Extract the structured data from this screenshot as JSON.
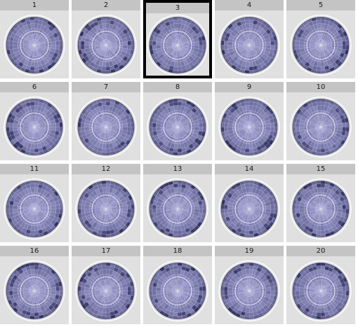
{
  "panels": [
    {
      "label": "1"
    },
    {
      "label": "2"
    },
    {
      "label": "3",
      "selected": true
    },
    {
      "label": "4"
    },
    {
      "label": "5"
    },
    {
      "label": "6"
    },
    {
      "label": "7"
    },
    {
      "label": "8"
    },
    {
      "label": "9"
    },
    {
      "label": "10"
    },
    {
      "label": "11"
    },
    {
      "label": "12"
    },
    {
      "label": "13"
    },
    {
      "label": "14"
    },
    {
      "label": "15"
    },
    {
      "label": "16"
    },
    {
      "label": "17"
    },
    {
      "label": "18"
    },
    {
      "label": "19"
    },
    {
      "label": "20"
    }
  ],
  "colors": {
    "panel_bg": "#e0e0e0",
    "strip_bg": "#c4c4c4",
    "fill_light": "#b8b8ec",
    "fill_dark": "#1a1a4a",
    "gridline": "#ffffff",
    "selection": "#000000"
  }
}
